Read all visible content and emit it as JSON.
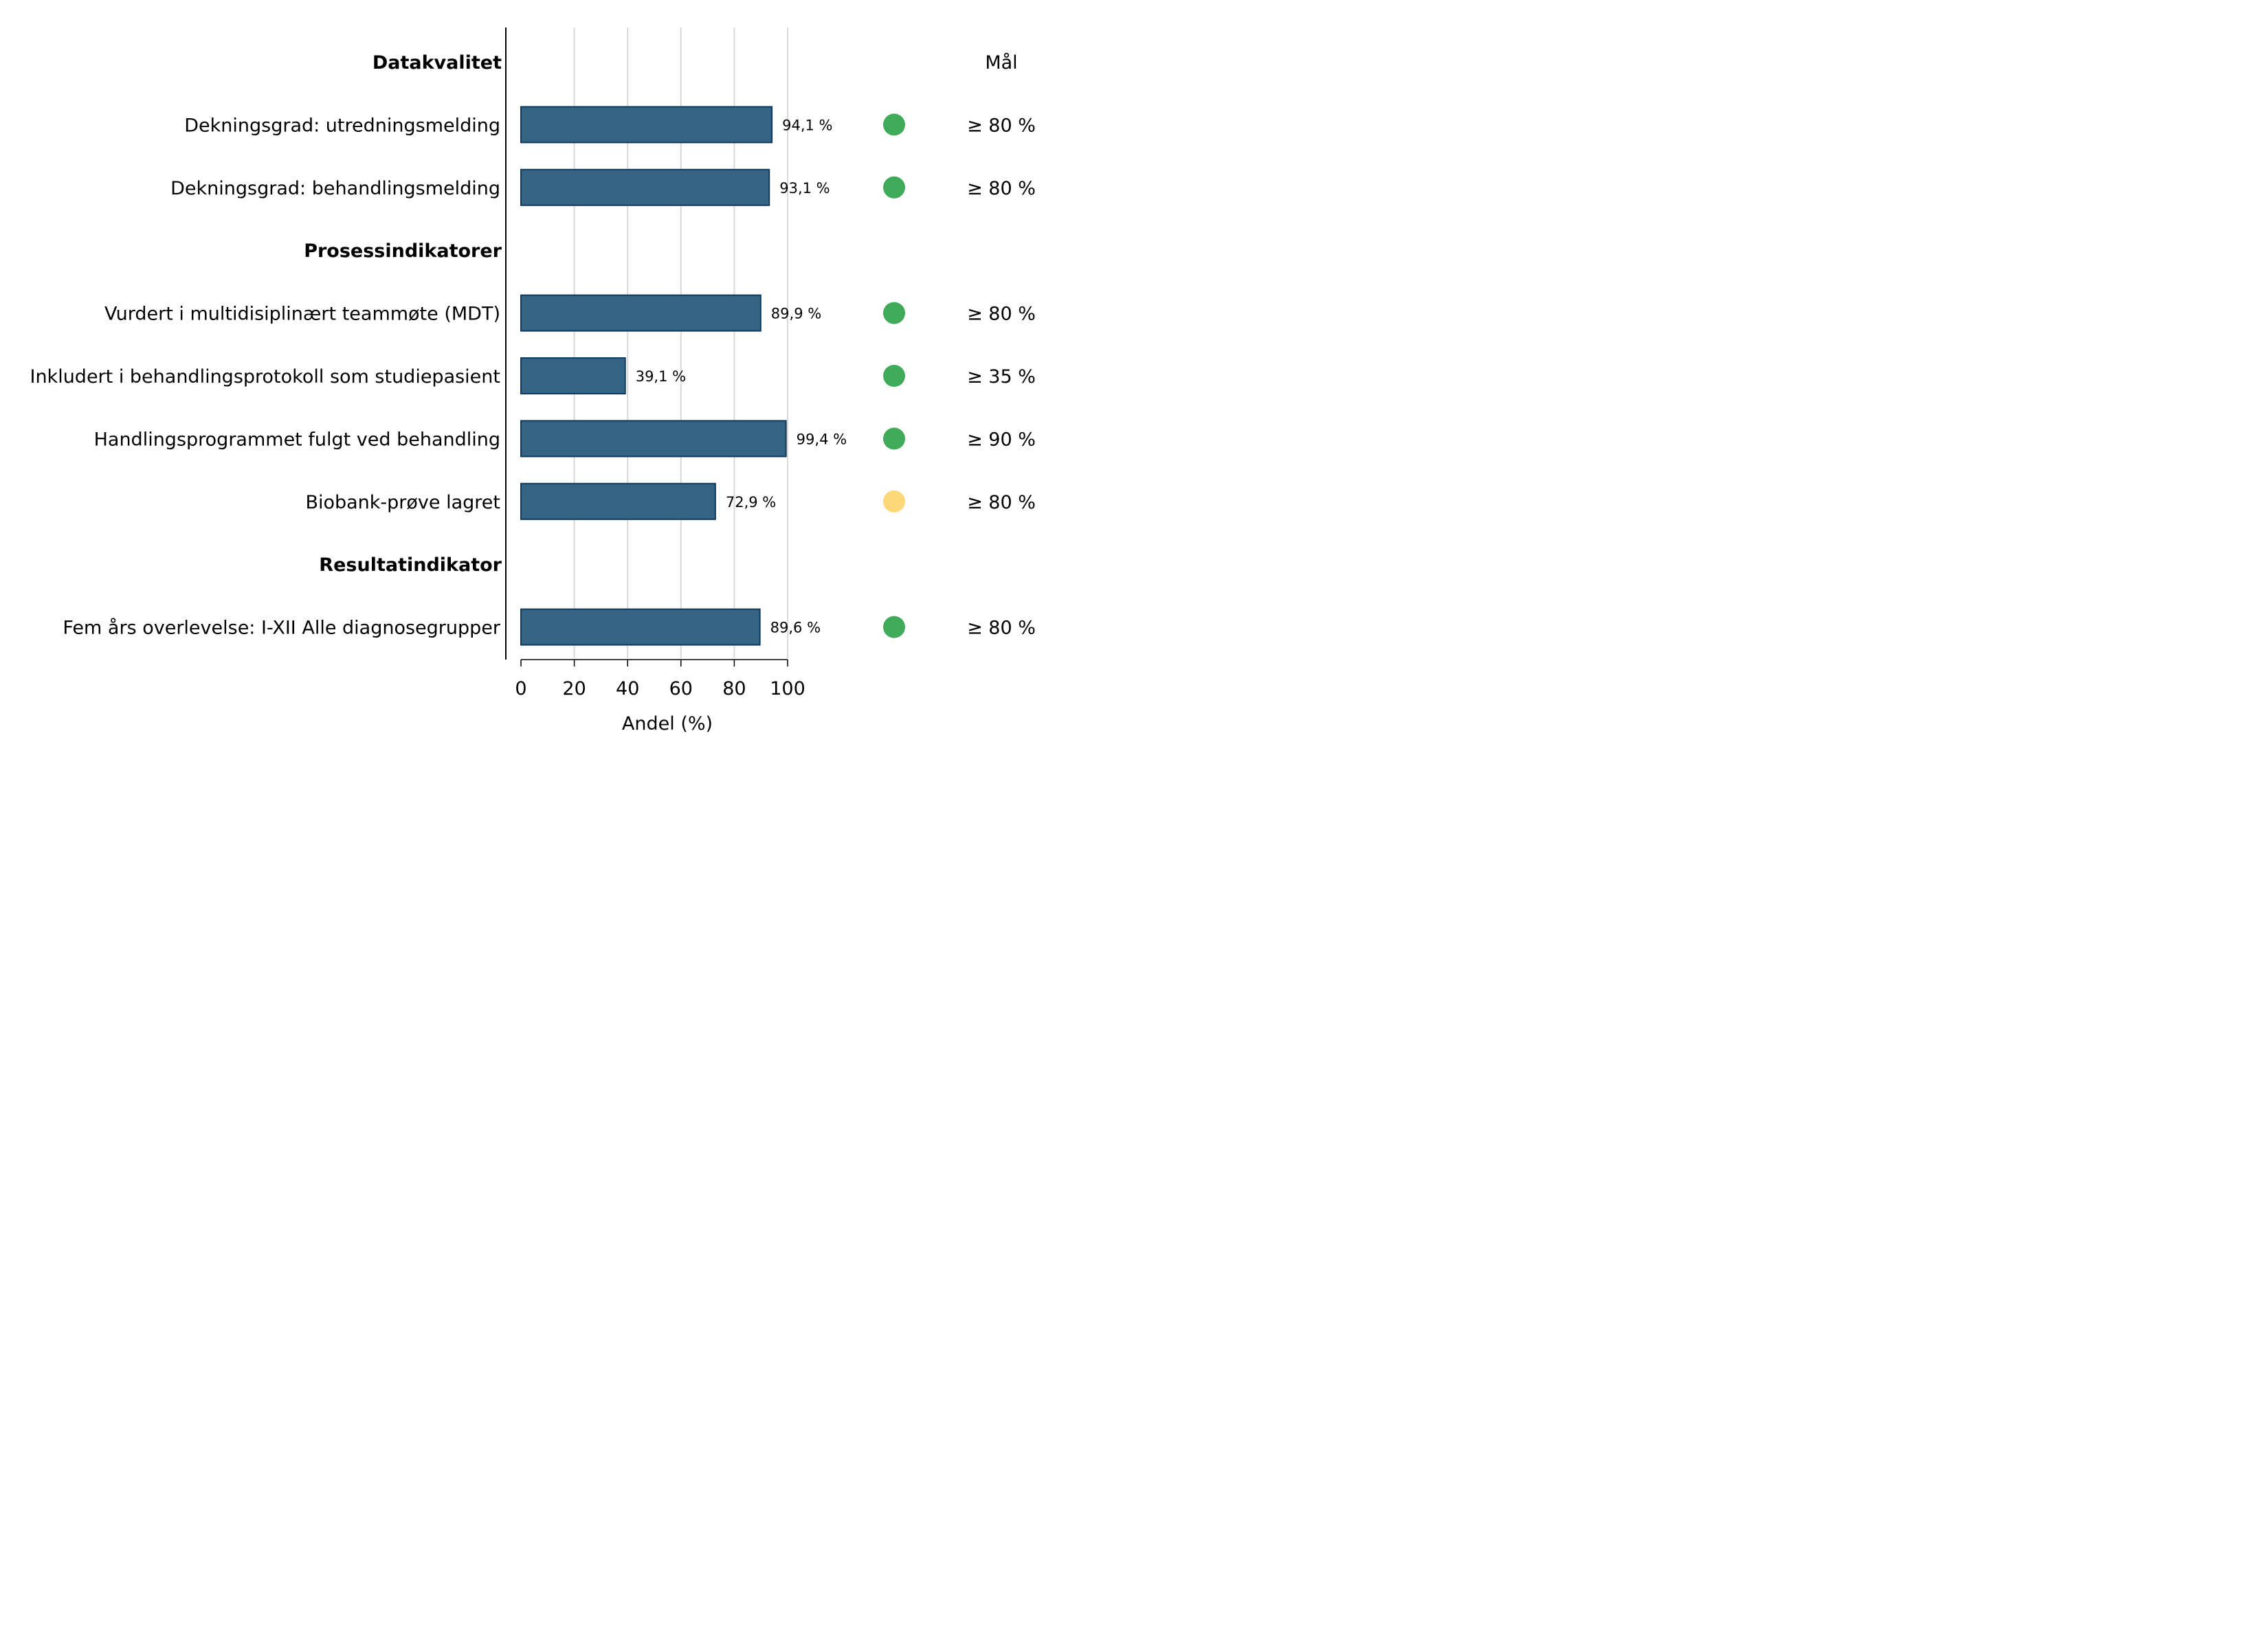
{
  "chart_data": {
    "type": "bar",
    "orientation": "horizontal",
    "xlabel": "Andel (%)",
    "xlim": [
      0,
      100
    ],
    "xticks": [
      "0",
      "20",
      "40",
      "60",
      "80",
      "100"
    ],
    "grid": true,
    "goal_header": "Mål",
    "bar_color": "#336485",
    "bar_edge_color": "#0f3a5c",
    "status_colors": {
      "green": "#3faa57",
      "yellow": "#fdd778"
    },
    "rows": [
      {
        "kind": "section",
        "label": "Datakvalitet"
      },
      {
        "kind": "bar",
        "label": "Dekningsgrad: utredningsmelding",
        "value": 94.1,
        "value_label": "94,1 %",
        "status": "green",
        "target": "≥ 80 %"
      },
      {
        "kind": "bar",
        "label": "Dekningsgrad: behandlingsmelding",
        "value": 93.1,
        "value_label": "93,1 %",
        "status": "green",
        "target": "≥ 80 %"
      },
      {
        "kind": "section",
        "label": "Prosessindikatorer"
      },
      {
        "kind": "bar",
        "label": "Vurdert i multidisiplinært teammøte (MDT)",
        "value": 89.9,
        "value_label": "89,9 %",
        "status": "green",
        "target": "≥ 80 %"
      },
      {
        "kind": "bar",
        "label": "Inkludert i behandlingsprotokoll som studiepasient",
        "value": 39.1,
        "value_label": "39,1 %",
        "status": "green",
        "target": "≥ 35 %"
      },
      {
        "kind": "bar",
        "label": "Handlingsprogrammet fulgt ved behandling",
        "value": 99.4,
        "value_label": "99,4 %",
        "status": "green",
        "target": "≥ 90 %"
      },
      {
        "kind": "bar",
        "label": "Biobank-prøve lagret",
        "value": 72.9,
        "value_label": "72,9 %",
        "status": "yellow",
        "target": "≥ 80 %"
      },
      {
        "kind": "section",
        "label": "Resultatindikator"
      },
      {
        "kind": "bar",
        "label": "Fem års overlevelse: I-XII Alle diagnosegrupper",
        "value": 89.6,
        "value_label": "89,6 %",
        "status": "green",
        "target": "≥ 80 %"
      }
    ]
  }
}
